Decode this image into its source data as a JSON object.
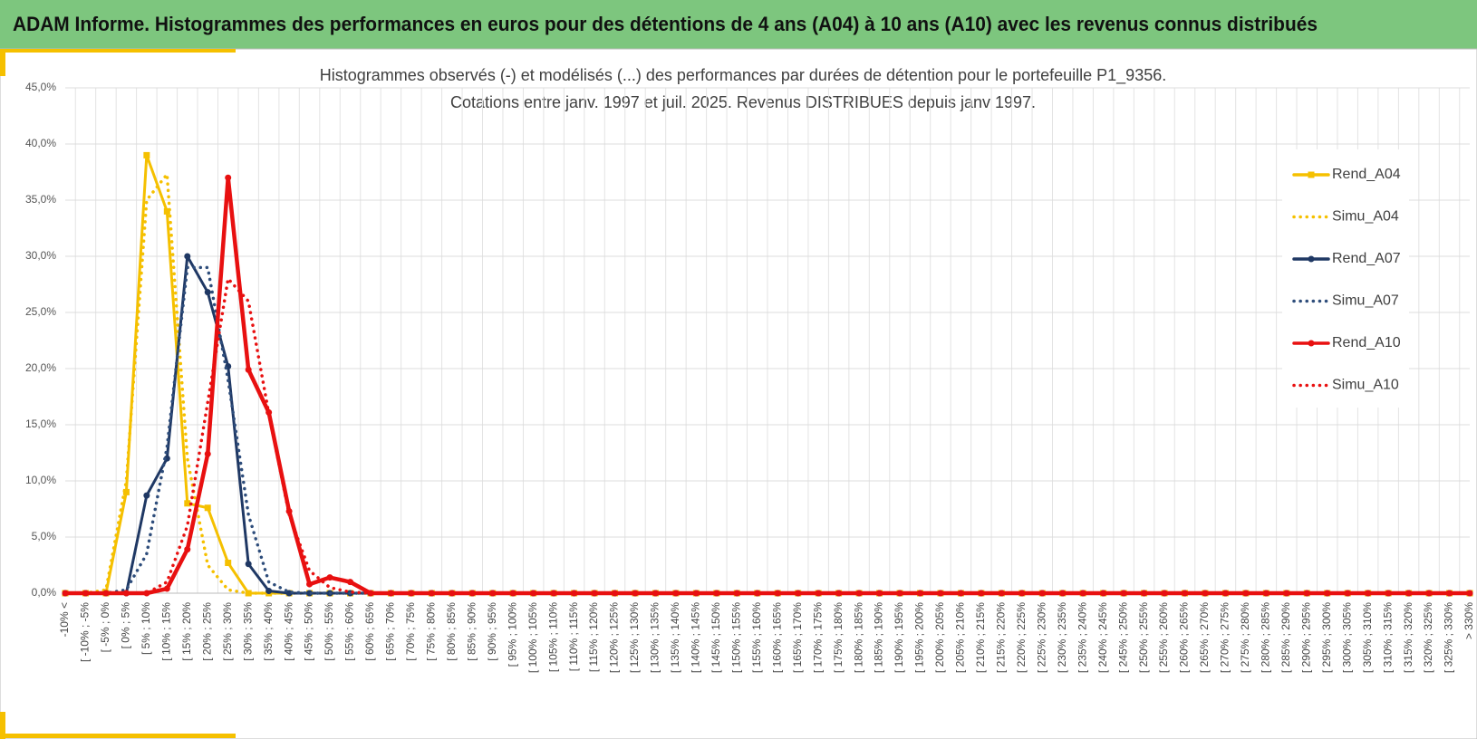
{
  "header": {
    "title": "ADAM Informe. Histogrammes des performances en euros pour des détentions de 4 ans (A04) à 10 ans (A10) avec les revenus connus distribués"
  },
  "chart_data": {
    "type": "line",
    "title": "Histogrammes observés (-) et modélisés (...) des performances par durées de détention pour le portefeuille P1_9356.",
    "subtitle": "Cotations entre janv. 1997 et juil. 2025. Revenus DISTRIBUES depuis janv 1997.",
    "categories": [
      "-10% <",
      "[ -10% ; -5%",
      "[ -5% ; 0%",
      "[ 0% ; 5%",
      "[ 5% ; 10%",
      "[ 10% ; 15%",
      "[ 15% ; 20%",
      "[ 20% ; 25%",
      "[ 25% ; 30%",
      "[ 30% ; 35%",
      "[ 35% ; 40%",
      "[ 40% ; 45%",
      "[ 45% ; 50%",
      "[ 50% ; 55%",
      "[ 55% ; 60%",
      "[ 60% ; 65%",
      "[ 65% ; 70%",
      "[ 70% ; 75%",
      "[ 75% ; 80%",
      "[ 80% ; 85%",
      "[ 85% ; 90%",
      "[ 90% ; 95%",
      "[ 95% ; 100%",
      "[ 100% ; 105%",
      "[ 105% ; 110%",
      "[ 110% ; 115%",
      "[ 115% ; 120%",
      "[ 120% ; 125%",
      "[ 125% ; 130%",
      "[ 130% ; 135%",
      "[ 135% ; 140%",
      "[ 140% ; 145%",
      "[ 145% ; 150%",
      "[ 150% ; 155%",
      "[ 155% ; 160%",
      "[ 160% ; 165%",
      "[ 165% ; 170%",
      "[ 170% ; 175%",
      "[ 175% ; 180%",
      "[ 180% ; 185%",
      "[ 185% ; 190%",
      "[ 190% ; 195%",
      "[ 195% ; 200%",
      "[ 200% ; 205%",
      "[ 205% ; 210%",
      "[ 210% ; 215%",
      "[ 215% ; 220%",
      "[ 220% ; 225%",
      "[ 225% ; 230%",
      "[ 230% ; 235%",
      "[ 235% ; 240%",
      "[ 240% ; 245%",
      "[ 245% ; 250%",
      "[ 250% ; 255%",
      "[ 255% ; 260%",
      "[ 260% ; 265%",
      "[ 265% ; 270%",
      "[ 270% ; 275%",
      "[ 275% ; 280%",
      "[ 280% ; 285%",
      "[ 285% ; 290%",
      "[ 290% ; 295%",
      "[ 295% ; 300%",
      "[ 300% ; 305%",
      "[ 305% ; 310%",
      "[ 310% ; 315%",
      "[ 315% ; 320%",
      "[ 320% ; 325%",
      "[ 325% ; 330%",
      "> 330%"
    ],
    "series": [
      {
        "name": "Rend_A04",
        "color": "#f5c000",
        "dash": "solid",
        "marker": "square",
        "values": [
          0,
          0,
          0,
          9.0,
          39.0,
          34.0,
          8.0,
          7.6,
          2.7,
          0,
          0,
          0,
          0,
          0,
          0,
          0,
          0,
          0,
          0,
          0,
          0,
          0,
          0,
          0,
          0,
          0,
          0,
          0,
          0,
          0,
          0,
          0,
          0,
          0,
          0,
          0,
          0,
          0,
          0,
          0,
          0,
          0,
          0,
          0,
          0,
          0,
          0,
          0,
          0,
          0,
          0,
          0,
          0,
          0,
          0,
          0,
          0,
          0,
          0,
          0,
          0,
          0,
          0,
          0,
          0,
          0,
          0,
          0,
          0,
          0
        ]
      },
      {
        "name": "Simu_A04",
        "color": "#f5c000",
        "dash": "dotted",
        "marker": "none",
        "values": [
          0,
          0,
          0.3,
          10,
          35,
          37.3,
          12,
          2.5,
          0.3,
          0,
          0,
          0,
          0,
          0,
          0,
          0,
          0,
          0,
          0,
          0,
          0,
          0,
          0,
          0,
          0,
          0,
          0,
          0,
          0,
          0,
          0,
          0,
          0,
          0,
          0,
          0,
          0,
          0,
          0,
          0,
          0,
          0,
          0,
          0,
          0,
          0,
          0,
          0,
          0,
          0,
          0,
          0,
          0,
          0,
          0,
          0,
          0,
          0,
          0,
          0,
          0,
          0,
          0,
          0,
          0,
          0,
          0,
          0,
          0,
          0
        ]
      },
      {
        "name": "Rend_A07",
        "color": "#1f3864",
        "dash": "solid",
        "marker": "circle",
        "values": [
          0,
          0,
          0,
          0,
          8.7,
          12,
          30,
          26.8,
          20.2,
          2.6,
          0.2,
          0,
          0,
          0,
          0,
          0,
          0,
          0,
          0,
          0,
          0,
          0,
          0,
          0,
          0,
          0,
          0,
          0,
          0,
          0,
          0,
          0,
          0,
          0,
          0,
          0,
          0,
          0,
          0,
          0,
          0,
          0,
          0,
          0,
          0,
          0,
          0,
          0,
          0,
          0,
          0,
          0,
          0,
          0,
          0,
          0,
          0,
          0,
          0,
          0,
          0,
          0,
          0,
          0,
          0,
          0,
          0,
          0,
          0,
          0
        ]
      },
      {
        "name": "Simu_A07",
        "color": "#2e4d7b",
        "dash": "dotted",
        "marker": "none",
        "values": [
          0,
          0,
          0,
          0.3,
          3.5,
          13,
          29,
          29,
          19,
          7,
          1,
          0.1,
          0,
          0,
          0,
          0,
          0,
          0,
          0,
          0,
          0,
          0,
          0,
          0,
          0,
          0,
          0,
          0,
          0,
          0,
          0,
          0,
          0,
          0,
          0,
          0,
          0,
          0,
          0,
          0,
          0,
          0,
          0,
          0,
          0,
          0,
          0,
          0,
          0,
          0,
          0,
          0,
          0,
          0,
          0,
          0,
          0,
          0,
          0,
          0,
          0,
          0,
          0,
          0,
          0,
          0,
          0,
          0,
          0,
          0
        ]
      },
      {
        "name": "Rend_A10",
        "color": "#e81010",
        "dash": "solid",
        "marker": "circle",
        "values": [
          0,
          0,
          0,
          0,
          0,
          0.4,
          3.9,
          12.4,
          37,
          19.9,
          16.1,
          7.3,
          0.8,
          1.4,
          1.0,
          0,
          0,
          0,
          0,
          0,
          0,
          0,
          0,
          0,
          0,
          0,
          0,
          0,
          0,
          0,
          0,
          0,
          0,
          0,
          0,
          0,
          0,
          0,
          0,
          0,
          0,
          0,
          0,
          0,
          0,
          0,
          0,
          0,
          0,
          0,
          0,
          0,
          0,
          0,
          0,
          0,
          0,
          0,
          0,
          0,
          0,
          0,
          0,
          0,
          0,
          0,
          0,
          0,
          0,
          0
        ]
      },
      {
        "name": "Simu_A10",
        "color": "#e81010",
        "dash": "dotted",
        "marker": "none",
        "values": [
          0,
          0,
          0,
          0,
          0,
          1,
          6,
          17,
          28,
          26,
          16,
          7,
          2,
          0.5,
          0.1,
          0,
          0,
          0,
          0,
          0,
          0,
          0,
          0,
          0,
          0,
          0,
          0,
          0,
          0,
          0,
          0,
          0,
          0,
          0,
          0,
          0,
          0,
          0,
          0,
          0,
          0,
          0,
          0,
          0,
          0,
          0,
          0,
          0,
          0,
          0,
          0,
          0,
          0,
          0,
          0,
          0,
          0,
          0,
          0,
          0,
          0,
          0,
          0,
          0,
          0,
          0,
          0,
          0,
          0,
          0
        ]
      }
    ],
    "ylim": [
      0,
      45
    ],
    "yticks": [
      {
        "value": 0,
        "label": "0,0%"
      },
      {
        "value": 5,
        "label": "5,0%"
      },
      {
        "value": 10,
        "label": "10,0%"
      },
      {
        "value": 15,
        "label": "15,0%"
      },
      {
        "value": 20,
        "label": "20,0%"
      },
      {
        "value": 25,
        "label": "25,0%"
      },
      {
        "value": 30,
        "label": "30,0%"
      },
      {
        "value": 35,
        "label": "35,0%"
      },
      {
        "value": 40,
        "label": "40,0%"
      },
      {
        "value": 45,
        "label": "45,0%"
      }
    ],
    "grid": true,
    "legend": "right"
  }
}
